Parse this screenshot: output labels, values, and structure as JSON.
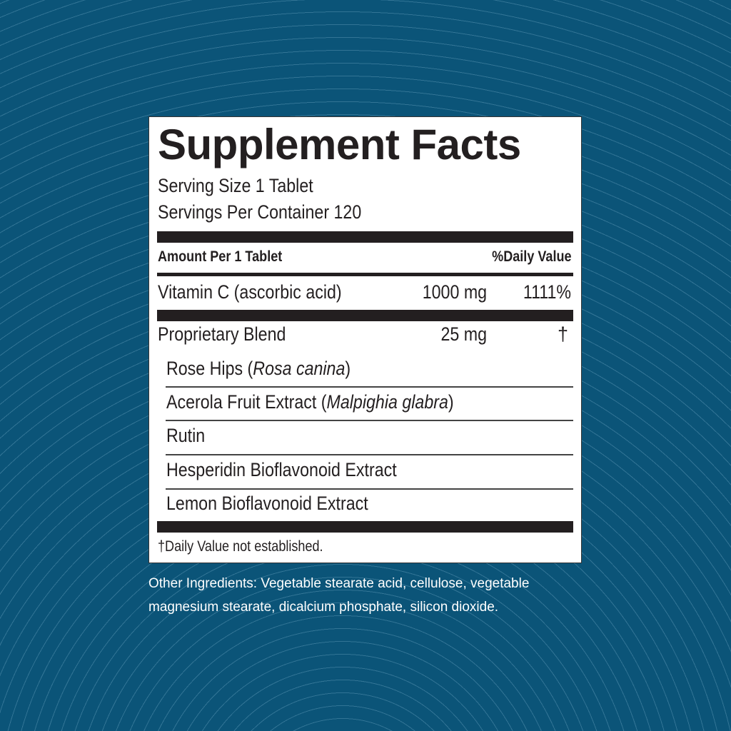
{
  "label": {
    "title": "Supplement Facts",
    "serving_size": "Serving Size 1 Tablet",
    "servings_per_container": "Servings Per Container 120",
    "header_left": "Amount Per 1 Tablet",
    "header_right": "%Daily Value",
    "rows": [
      {
        "name": "Vitamin C (ascorbic acid)",
        "amount": "1000 mg",
        "dv": "1111%"
      },
      {
        "name": "Proprietary Blend",
        "amount": "25 mg",
        "dv": "†"
      }
    ],
    "blend_items": [
      {
        "common": "Rose Hips (",
        "latin": "Rosa canina",
        "close": ")"
      },
      {
        "common": "Acerola Fruit Extract (",
        "latin": "Malpighia glabra",
        "close": ")"
      },
      {
        "common": "Rutin",
        "latin": "",
        "close": ""
      },
      {
        "common": "Hesperidin Bioflavonoid Extract",
        "latin": "",
        "close": ""
      },
      {
        "common": "Lemon Bioflavonoid Extract",
        "latin": "",
        "close": ""
      }
    ],
    "footnote": "†Daily Value not established."
  },
  "other_ingredients": "Other Ingredients: Vegetable stearate acid, cellulose, vegetable magnesium stearate, dicalcium phosphate, silicon dioxide.",
  "colors": {
    "background": "#0b5478",
    "label": "#ffffff",
    "ink": "#231f20"
  }
}
